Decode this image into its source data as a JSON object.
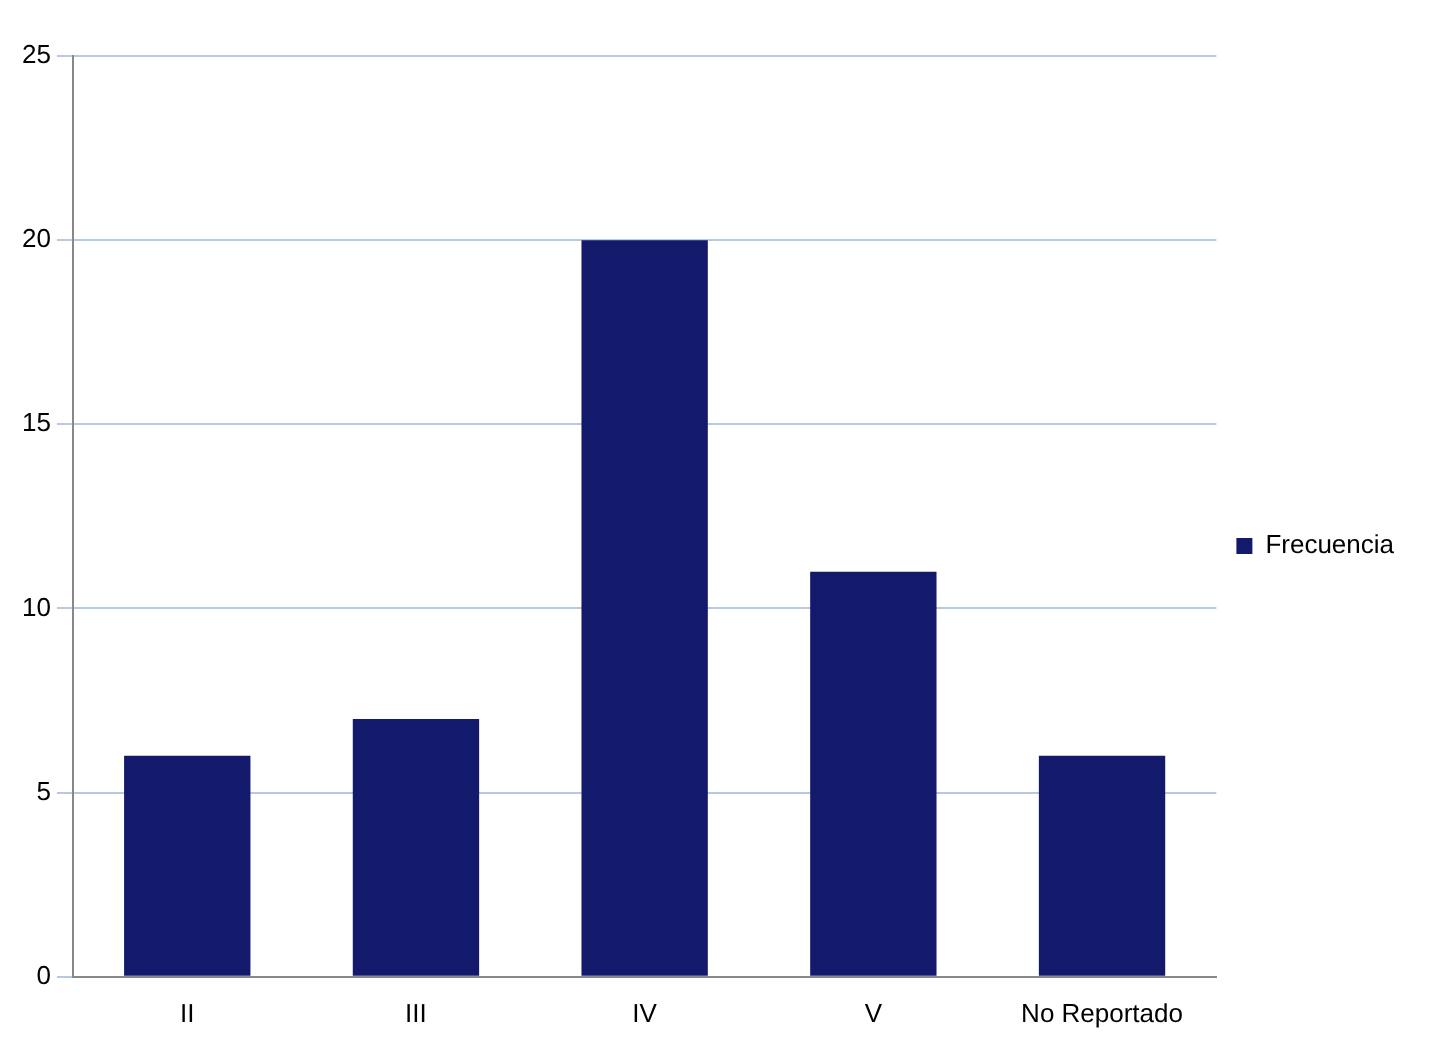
{
  "chart_data": {
    "type": "bar",
    "categories": [
      "II",
      "III",
      "IV",
      "V",
      "No Reportado"
    ],
    "series": [
      {
        "name": "Frecuencia",
        "color": "#141a6b",
        "values": [
          6,
          7,
          20,
          11,
          6
        ]
      }
    ],
    "ylim": [
      0,
      25
    ],
    "yticks": [
      0,
      5,
      10,
      15,
      20,
      25
    ],
    "grid": "y",
    "legend": "right"
  }
}
